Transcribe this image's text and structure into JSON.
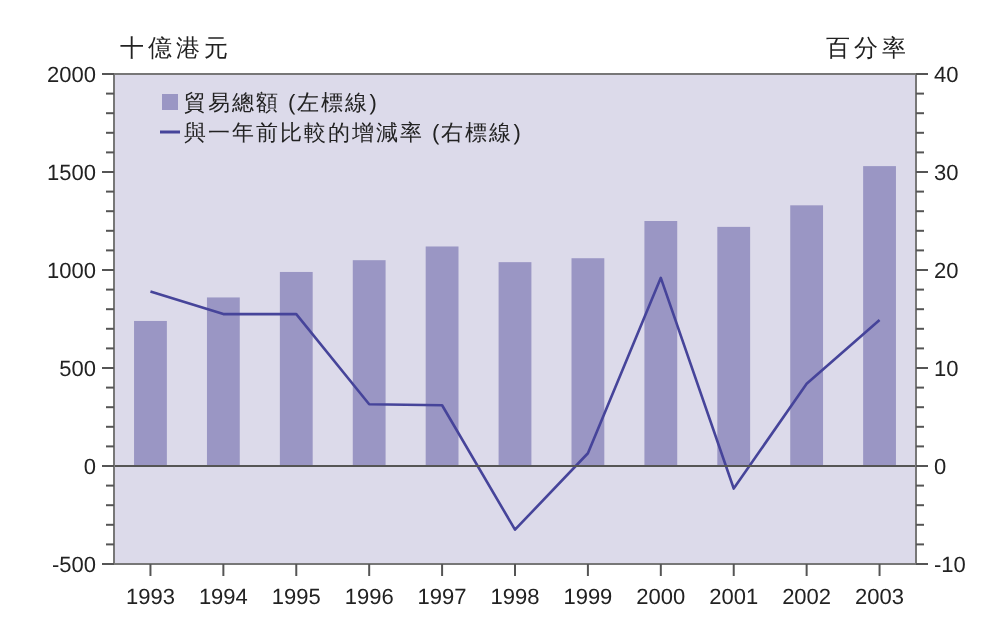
{
  "chart_data": {
    "type": "bar",
    "ylabel": "十億港元",
    "y2label": "百分率",
    "categories": [
      "1993",
      "1994",
      "1995",
      "1996",
      "1997",
      "1998",
      "1999",
      "2000",
      "2001",
      "2002",
      "2003"
    ],
    "series": [
      {
        "name": "貿易總額 (左標線)",
        "color": "#9a96c4",
        "values": [
          740,
          860,
          990,
          1050,
          1120,
          1040,
          1060,
          1250,
          1220,
          1330,
          1530
        ]
      },
      {
        "name": "與一年前比較的增減率 (右標線)",
        "type": "line",
        "axis": "y2",
        "color": "#46449a",
        "values": [
          17.8,
          15.5,
          15.5,
          6.3,
          6.2,
          -6.5,
          1.3,
          19.2,
          -2.3,
          8.4,
          14.9
        ]
      }
    ],
    "ylim": [
      -500,
      2000
    ],
    "yticks": [
      -500,
      {
        "value": -400,
        "label": null
      },
      {
        "value": -300,
        "label": null
      },
      {
        "value": -200,
        "label": null
      },
      {
        "value": -100,
        "label": null
      },
      0,
      {
        "value": 100,
        "label": null
      },
      {
        "value": 200,
        "label": null
      },
      {
        "value": 300,
        "label": null
      },
      {
        "value": 400,
        "label": null
      },
      500,
      {
        "value": 600,
        "label": null
      },
      {
        "value": 700,
        "label": null
      },
      {
        "value": 800,
        "label": null
      },
      {
        "value": 900,
        "label": null
      },
      1000,
      {
        "value": 1100,
        "label": null
      },
      {
        "value": 1200,
        "label": null
      },
      {
        "value": 1300,
        "label": null
      },
      {
        "value": 1400,
        "label": null
      },
      1500,
      {
        "value": 1600,
        "label": null
      },
      {
        "value": 1700,
        "label": null
      },
      {
        "value": 1800,
        "label": null
      },
      {
        "value": 1900,
        "label": null
      },
      2000
    ],
    "y2lim": [
      -10,
      40
    ],
    "y2ticks": [
      -10,
      {
        "value": -8,
        "label": null
      },
      {
        "value": -6,
        "label": null
      },
      {
        "value": -4,
        "label": null
      },
      {
        "value": -2,
        "label": null
      },
      0,
      {
        "value": 2,
        "label": null
      },
      {
        "value": 4,
        "label": null
      },
      {
        "value": 6,
        "label": null
      },
      {
        "value": 8,
        "label": null
      },
      10,
      {
        "value": 12,
        "label": null
      },
      {
        "value": 14,
        "label": null
      },
      {
        "value": 16,
        "label": null
      },
      {
        "value": 18,
        "label": null
      },
      20,
      {
        "value": 22,
        "label": null
      },
      {
        "value": 24,
        "label": null
      },
      {
        "value": 26,
        "label": null
      },
      {
        "value": 28,
        "label": null
      },
      30,
      {
        "value": 32,
        "label": null
      },
      {
        "value": 34,
        "label": null
      },
      {
        "value": 36,
        "label": null
      },
      {
        "value": 38,
        "label": null
      },
      40
    ],
    "ref_lines": [
      {
        "axis": "y",
        "value": 0,
        "color": "#555555"
      }
    ],
    "legend": "top left",
    "grid": false
  }
}
